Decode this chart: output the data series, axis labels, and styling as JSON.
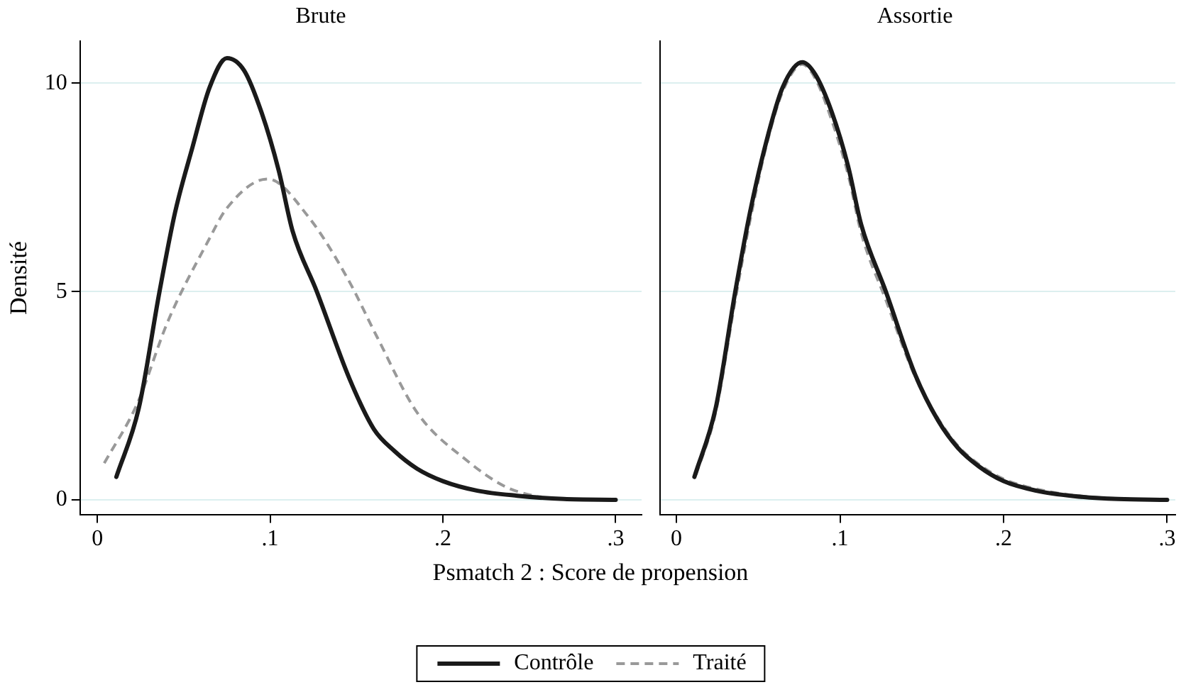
{
  "chart_data": [
    {
      "type": "line",
      "title": "Brute",
      "xlabel": "Psmatch 2 : Score de propension",
      "ylabel": "Densité",
      "xlim": [
        -0.01,
        0.315
      ],
      "ylim": [
        -0.35,
        11
      ],
      "xticks": [
        0,
        {
          "value": 0.1,
          "label": ".1"
        },
        {
          "value": 0.2,
          "label": ".2"
        },
        {
          "value": 0.3,
          "label": ".3"
        }
      ],
      "yticks": [
        0,
        5,
        10
      ],
      "grid": "y",
      "legend": "bottom",
      "marker": "none",
      "series": [
        {
          "name": "Contrôle",
          "color": "#1a1a1a",
          "line_style": "solid",
          "x": [
            0.011,
            0.024,
            0.036,
            0.045,
            0.055,
            0.065,
            0.075,
            0.085,
            0.095,
            0.105,
            0.113,
            0.127,
            0.146,
            0.16,
            0.172,
            0.185,
            0.2,
            0.22,
            0.243,
            0.27,
            0.3
          ],
          "values": [
            0.55,
            2.2,
            5.0,
            6.9,
            8.45,
            9.9,
            10.6,
            10.3,
            9.3,
            7.9,
            6.45,
            5.0,
            2.9,
            1.7,
            1.17,
            0.75,
            0.45,
            0.22,
            0.1,
            0.02,
            0.0
          ]
        },
        {
          "name": "Traité",
          "color": "#999999",
          "line_style": "dashed",
          "x": [
            0.004,
            0.023,
            0.041,
            0.064,
            0.075,
            0.0985,
            0.122,
            0.145,
            0.162,
            0.185,
            0.214,
            0.237,
            0.257
          ],
          "values": [
            0.88,
            2.3,
            4.3,
            6.2,
            7.0,
            7.7,
            6.8,
            5.3,
            3.9,
            2.1,
            0.94,
            0.3,
            0.05
          ]
        }
      ]
    },
    {
      "type": "line",
      "title": "Assortie",
      "xlim": [
        -0.01,
        0.305
      ],
      "ylim": [
        -0.35,
        11
      ],
      "xticks": [
        0,
        {
          "value": 0.1,
          "label": ".1"
        },
        {
          "value": 0.2,
          "label": ".2"
        },
        {
          "value": 0.3,
          "label": ".3"
        }
      ],
      "yticks": [
        0,
        5,
        10
      ],
      "grid": "y",
      "tick_labels": "x",
      "marker": "none",
      "series": [
        {
          "color": "#1a1a1a",
          "line_style": "solid",
          "x": [
            0.011,
            0.024,
            0.036,
            0.045,
            0.055,
            0.065,
            0.077,
            0.085,
            0.095,
            0.105,
            0.113,
            0.128,
            0.146,
            0.16,
            0.172,
            0.185,
            0.2,
            0.22,
            0.243,
            0.27,
            0.3
          ],
          "values": [
            0.55,
            2.2,
            5.0,
            6.9,
            8.6,
            9.9,
            10.5,
            10.2,
            9.3,
            8.0,
            6.6,
            5.0,
            3.0,
            1.9,
            1.25,
            0.8,
            0.45,
            0.22,
            0.09,
            0.02,
            0.0
          ]
        },
        {
          "color": "#999999",
          "line_style": "dashed",
          "x": [
            0.012,
            0.024,
            0.036,
            0.045,
            0.055,
            0.065,
            0.077,
            0.085,
            0.095,
            0.105,
            0.113,
            0.128,
            0.146,
            0.16,
            0.172,
            0.185,
            0.2,
            0.22,
            0.243,
            0.27,
            0.29
          ],
          "values": [
            0.6,
            2.1,
            4.8,
            6.7,
            8.5,
            9.8,
            10.45,
            10.1,
            9.1,
            7.8,
            6.4,
            4.8,
            2.95,
            1.95,
            1.3,
            0.85,
            0.5,
            0.26,
            0.11,
            0.03,
            0.01
          ]
        }
      ]
    }
  ]
}
